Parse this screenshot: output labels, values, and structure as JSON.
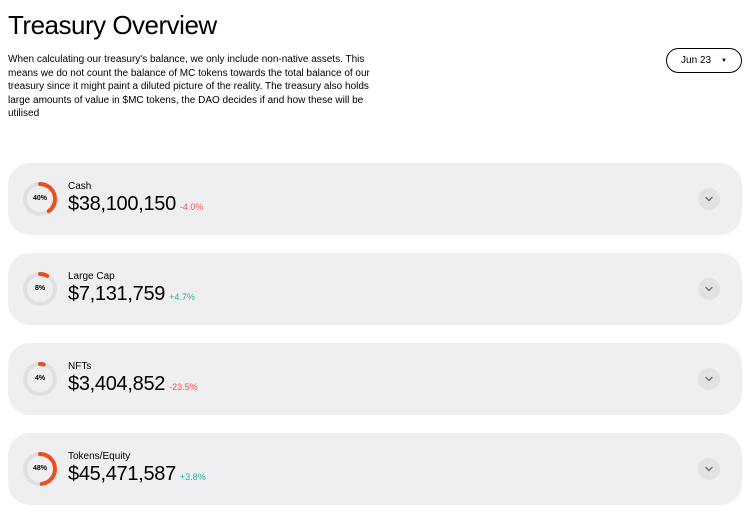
{
  "header": {
    "title": "Treasury Overview",
    "description": "When calculating our treasury's balance, we only include non-native assets. This means we do not count the balance of MC tokens towards the total balance of our treasury since it might paint a diluted picture of the reality. The treasury also holds large amounts of value in $MC tokens, the DAO decides if and how these will be utilised",
    "date_label": "Jun 23"
  },
  "colors": {
    "card_bg": "#efeff1",
    "donut_track": "#e0e0e2",
    "donut_fill": "#ee4d1f",
    "positive": "#1fb698",
    "negative": "#f0544f",
    "expand_bg": "#e2e2e4"
  },
  "items": [
    {
      "label": "Cash",
      "value": "$38,100,150",
      "change": "-4.0%",
      "change_dir": "neg",
      "pct_label": "40%",
      "pct": 40
    },
    {
      "label": "Large Cap",
      "value": "$7,131,759",
      "change": "+4.7%",
      "change_dir": "pos",
      "pct_label": "8%",
      "pct": 8
    },
    {
      "label": "NFTs",
      "value": "$3,404,852",
      "change": "-23.5%",
      "change_dir": "neg",
      "pct_label": "4%",
      "pct": 4
    },
    {
      "label": "Tokens/Equity",
      "value": "$45,471,587",
      "change": "+3.8%",
      "change_dir": "pos",
      "pct_label": "48%",
      "pct": 48
    }
  ]
}
